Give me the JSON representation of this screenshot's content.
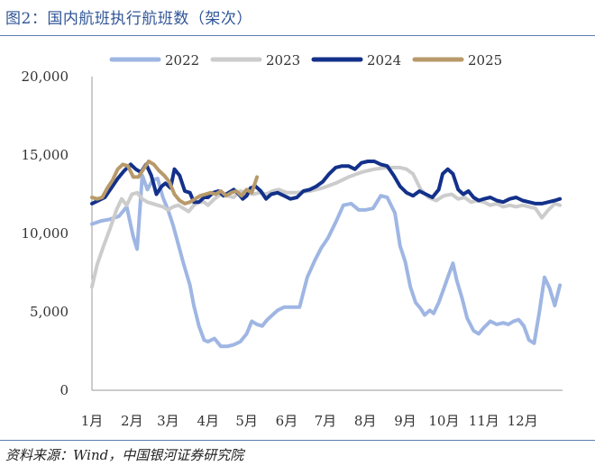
{
  "header": {
    "title": "图2：国内航班执行航班数（架次）"
  },
  "footer": {
    "source": "资料来源：Wind，中国银河证券研究院"
  },
  "colors": {
    "2022": "#9fb6e3",
    "2023": "#cccccc",
    "2024": "#13318a",
    "2025": "#b89a6a",
    "accent": "#2f5597"
  },
  "chart_data": {
    "type": "line",
    "title": "国内航班执行航班数（架次）",
    "x_type": "day_of_year",
    "xlim": [
      1,
      366
    ],
    "ylim": [
      0,
      20000
    ],
    "y_ticks": [
      0,
      5000,
      10000,
      15000,
      20000
    ],
    "y_tick_labels": [
      "0",
      "5,000",
      "10,000",
      "15,000",
      "20,000"
    ],
    "x_ticks": [
      1,
      32,
      60,
      91,
      121,
      152,
      182,
      213,
      244,
      274,
      305,
      335
    ],
    "x_tick_labels": [
      "1月",
      "2月",
      "3月",
      "4月",
      "5月",
      "6月",
      "7月",
      "8月",
      "9月",
      "10月",
      "11月",
      "12月"
    ],
    "legend_position": "top",
    "grid": false,
    "series": [
      {
        "name": "2022",
        "color": "#9fb6e3",
        "x": [
          1,
          8,
          15,
          22,
          28,
          33,
          36,
          40,
          44,
          48,
          52,
          56,
          60,
          64,
          68,
          72,
          77,
          80,
          84,
          88,
          91,
          96,
          101,
          106,
          111,
          116,
          121,
          125,
          129,
          133,
          137,
          141,
          145,
          150,
          156,
          162,
          168,
          174,
          179,
          184,
          190,
          196,
          202,
          208,
          213,
          219,
          225,
          230,
          236,
          240,
          244,
          248,
          252,
          256,
          259,
          263,
          266,
          270,
          274,
          277,
          281,
          284,
          288,
          292,
          297,
          301,
          305,
          310,
          315,
          320,
          324,
          328,
          332,
          336,
          340,
          344,
          348,
          352,
          356,
          360,
          364
        ],
        "y": [
          10600,
          10800,
          10900,
          11100,
          11700,
          9800,
          9000,
          13700,
          12800,
          13400,
          13500,
          12300,
          11500,
          10500,
          9300,
          8100,
          6700,
          5400,
          4100,
          3200,
          3100,
          3300,
          2800,
          2800,
          2900,
          3100,
          3600,
          4400,
          4200,
          4100,
          4500,
          4800,
          5100,
          5300,
          5300,
          5300,
          7200,
          8300,
          9100,
          9700,
          10700,
          11800,
          11900,
          11500,
          11500,
          11600,
          12400,
          12300,
          11300,
          9200,
          8200,
          6600,
          5600,
          5200,
          4800,
          5100,
          4900,
          5600,
          6500,
          7200,
          8100,
          7000,
          5900,
          4600,
          3800,
          3600,
          4000,
          4400,
          4200,
          4300,
          4200,
          4400,
          4500,
          4100,
          3200,
          3000,
          5000,
          7200,
          6500,
          5400,
          6700
        ]
      },
      {
        "name": "2023",
        "color": "#cccccc",
        "x": [
          1,
          5,
          10,
          15,
          20,
          24,
          28,
          32,
          36,
          40,
          44,
          48,
          52,
          56,
          60,
          64,
          68,
          72,
          76,
          80,
          84,
          88,
          91,
          96,
          101,
          106,
          111,
          116,
          121,
          126,
          131,
          136,
          141,
          146,
          152,
          160,
          170,
          180,
          190,
          200,
          210,
          220,
          230,
          240,
          245,
          250,
          256,
          262,
          268,
          274,
          280,
          285,
          290,
          295,
          300,
          305,
          310,
          315,
          320,
          325,
          330,
          335,
          340,
          345,
          350,
          355,
          360,
          364
        ],
        "y": [
          6600,
          8000,
          9200,
          10300,
          11500,
          12200,
          11800,
          12500,
          12600,
          12200,
          12000,
          11900,
          11800,
          11700,
          11500,
          11700,
          11800,
          11600,
          11400,
          11800,
          12000,
          12000,
          11800,
          12200,
          12500,
          12400,
          12300,
          12700,
          12600,
          12500,
          12600,
          12500,
          12700,
          12800,
          12600,
          12600,
          12700,
          12900,
          13200,
          13600,
          13900,
          14100,
          14200,
          14200,
          14100,
          13800,
          12800,
          12300,
          12100,
          12400,
          12500,
          12200,
          12300,
          12000,
          12100,
          12000,
          11800,
          11900,
          11700,
          11800,
          11700,
          11800,
          11700,
          11600,
          11000,
          11500,
          11900,
          11800
        ]
      },
      {
        "name": "2024",
        "color": "#13318a",
        "x": [
          1,
          6,
          11,
          16,
          21,
          26,
          31,
          35,
          39,
          43,
          47,
          51,
          55,
          58,
          62,
          65,
          69,
          73,
          77,
          80,
          84,
          88,
          91,
          95,
          99,
          103,
          107,
          111,
          115,
          118,
          121,
          124,
          128,
          132,
          136,
          140,
          145,
          150,
          155,
          160,
          165,
          170,
          175,
          180,
          185,
          190,
          195,
          200,
          205,
          210,
          215,
          220,
          225,
          230,
          235,
          240,
          245,
          250,
          255,
          260,
          265,
          270,
          273,
          277,
          281,
          285,
          289,
          293,
          297,
          301,
          305,
          310,
          315,
          320,
          325,
          330,
          335,
          340,
          345,
          350,
          355,
          360,
          364
        ],
        "y": [
          11900,
          12100,
          12300,
          12900,
          13500,
          14000,
          14400,
          14100,
          13900,
          14400,
          13700,
          12500,
          13000,
          13200,
          12900,
          14100,
          13700,
          12700,
          12600,
          12000,
          12000,
          12300,
          12300,
          12600,
          12700,
          12400,
          12600,
          12800,
          12500,
          12200,
          12400,
          12900,
          13000,
          12700,
          12200,
          12500,
          12600,
          12400,
          12200,
          12300,
          12700,
          12800,
          13000,
          13300,
          13800,
          14200,
          14300,
          14300,
          14100,
          14500,
          14600,
          14600,
          14400,
          14300,
          13700,
          13000,
          12600,
          12400,
          12700,
          12500,
          12300,
          12800,
          13800,
          14100,
          13800,
          12800,
          12500,
          12700,
          12300,
          12100,
          12200,
          12300,
          12100,
          12000,
          12200,
          12300,
          12100,
          12000,
          11900,
          11900,
          12000,
          12100,
          12200
        ]
      },
      {
        "name": "2025",
        "color": "#b89a6a",
        "x": [
          1,
          5,
          9,
          13,
          17,
          21,
          25,
          29,
          33,
          37,
          41,
          45,
          49,
          53,
          57,
          61,
          65,
          69,
          73,
          77,
          81,
          85,
          89,
          93,
          97,
          101,
          105,
          109,
          113,
          117,
          121,
          125,
          129
        ],
        "y": [
          12300,
          12200,
          12300,
          12900,
          13400,
          14100,
          14400,
          14300,
          13600,
          13600,
          14100,
          14600,
          14400,
          14000,
          13700,
          13300,
          12500,
          12100,
          11900,
          12000,
          12200,
          12400,
          12500,
          12600,
          12500,
          12700,
          12400,
          12600,
          12700,
          12400,
          12800,
          12600,
          13600
        ]
      }
    ]
  }
}
